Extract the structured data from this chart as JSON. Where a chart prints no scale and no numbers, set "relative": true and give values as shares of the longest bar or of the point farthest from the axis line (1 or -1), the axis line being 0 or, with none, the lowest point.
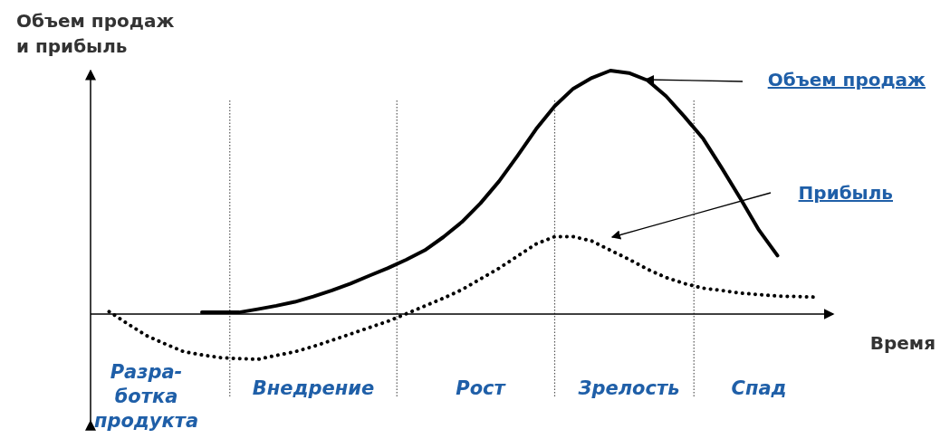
{
  "chart_data": {
    "type": "line",
    "relative": true,
    "ylabel": "Объем продаж и прибыль",
    "xlabel": "Время",
    "categories": [
      null,
      null,
      null,
      "Разра-\nботка\nпродукта",
      null,
      null,
      null,
      null,
      null,
      null,
      null,
      null,
      "Внедрение",
      null,
      null,
      null,
      null,
      null,
      null,
      null,
      null,
      "Рост",
      null,
      null,
      null,
      null,
      null,
      null,
      null,
      "Зрелость",
      null,
      null,
      null,
      null,
      null,
      null,
      "Спад",
      null,
      null,
      null,
      null
    ],
    "series": [
      {
        "name": "Объем продаж",
        "color": "#000000",
        "line_style": "solid",
        "values": [
          null,
          null,
          null,
          null,
          null,
          null,
          0.007,
          0.007,
          0.007,
          0.02,
          0.034,
          0.05,
          0.072,
          0.097,
          0.125,
          0.157,
          0.188,
          0.223,
          0.262,
          0.316,
          0.378,
          0.455,
          0.545,
          0.65,
          0.76,
          0.854,
          0.926,
          0.97,
          1,
          0.99,
          0.96,
          0.895,
          0.81,
          0.72,
          0.6,
          0.475,
          0.345,
          0.24,
          null,
          null,
          null
        ]
      },
      {
        "name": "Прибыль",
        "color": "#000000",
        "line_style": "dotted",
        "values": [
          null,
          0.01,
          -0.04,
          -0.088,
          -0.122,
          -0.154,
          -0.168,
          -0.179,
          -0.183,
          -0.186,
          -0.17,
          -0.155,
          -0.133,
          -0.108,
          -0.082,
          -0.056,
          -0.03,
          0.001,
          0.033,
          0.065,
          0.1,
          0.144,
          0.188,
          0.238,
          0.288,
          0.318,
          0.318,
          0.3,
          0.262,
          0.225,
          0.184,
          0.15,
          0.125,
          0.106,
          0.097,
          0.086,
          0.08,
          0.074,
          0.072,
          0.07,
          null
        ]
      }
    ]
  }
}
